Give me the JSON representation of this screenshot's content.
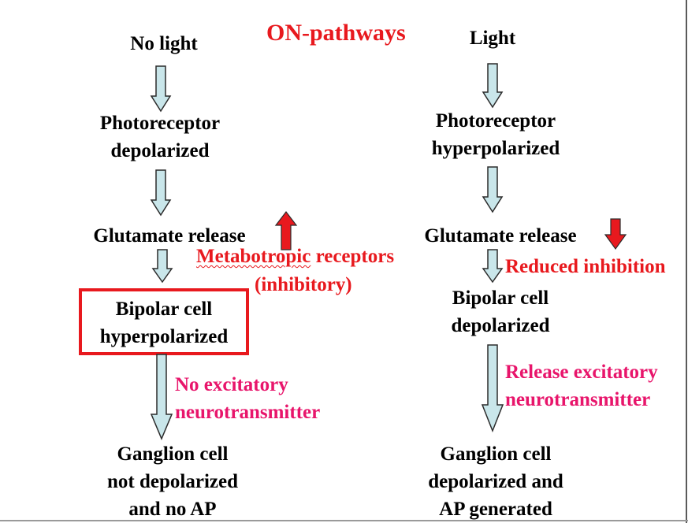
{
  "title": "ON-pathways",
  "left": {
    "header": "No light",
    "photoreceptor": [
      "Photoreceptor",
      "depolarized"
    ],
    "glutamate": "Glutamate release",
    "bipolar": [
      "Bipolar cell",
      "hyperpolarized"
    ],
    "ganglion": [
      "Ganglion cell",
      "not depolarized",
      "and no AP"
    ],
    "bipolar_note": [
      "No excitatory",
      "neurotransmitter"
    ]
  },
  "right": {
    "header": "Light",
    "photoreceptor": [
      "Photoreceptor",
      "hyperpolarized"
    ],
    "glutamate": "Glutamate release",
    "bipolar": [
      "Bipolar cell",
      "depolarized"
    ],
    "ganglion": [
      "Ganglion cell",
      "depolarized and",
      "AP generated"
    ],
    "bipolar_note": [
      "Release excitatory",
      "neurotransmitter"
    ],
    "glutamate_note": "Reduced inhibition"
  },
  "receptor_note": {
    "part1": "Metabotropic",
    "part2": " receptors",
    "line2": "(inhibitory)"
  },
  "colors": {
    "arrow_fill": "#c9e6ea",
    "arrow_stroke": "#2b2b2b",
    "red": "#e8191e",
    "magenta": "#e8156b"
  }
}
